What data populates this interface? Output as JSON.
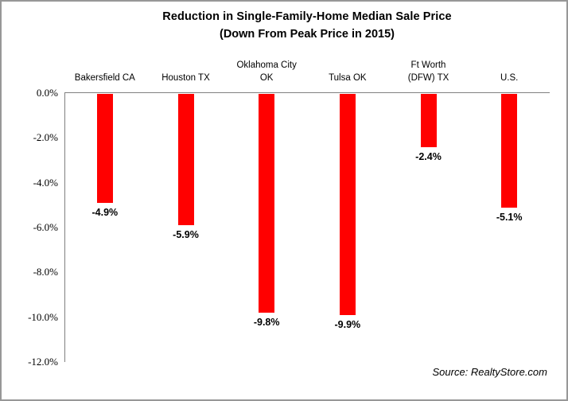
{
  "chart_data": {
    "type": "bar",
    "title": "Reduction in Single-Family-Home Median Sale Price",
    "subtitle": "(Down From Peak Price in 2015)",
    "categories": [
      "Bakersfield CA",
      "Houston TX",
      "Oklahoma City OK",
      "Tulsa OK",
      "Ft Worth (DFW) TX",
      "U.S."
    ],
    "category_display": [
      [
        "Bakersfield CA"
      ],
      [
        "Houston TX"
      ],
      [
        "Oklahoma City",
        "OK"
      ],
      [
        "Tulsa OK"
      ],
      [
        "Ft Worth",
        "(DFW) TX"
      ],
      [
        "U.S."
      ]
    ],
    "values": [
      -4.9,
      -5.9,
      -9.8,
      -9.9,
      -2.4,
      -5.1
    ],
    "value_labels": [
      "-4.9%",
      "-5.9%",
      "-9.8%",
      "-9.9%",
      "-2.4%",
      "-5.1%"
    ],
    "y_ticks": [
      "0.0%",
      "-2.0%",
      "-4.0%",
      "-6.0%",
      "-8.0%",
      "-10.0%",
      "-12.0%"
    ],
    "y_tick_values": [
      0,
      -2,
      -4,
      -6,
      -8,
      -10,
      -12
    ],
    "ylim": [
      0,
      -12
    ],
    "xlabel": "",
    "ylabel": "",
    "grid": false,
    "legend": false,
    "bar_color": "#ff0000",
    "axis_color": "#808080",
    "source": "Source: RealtyStore.com"
  }
}
